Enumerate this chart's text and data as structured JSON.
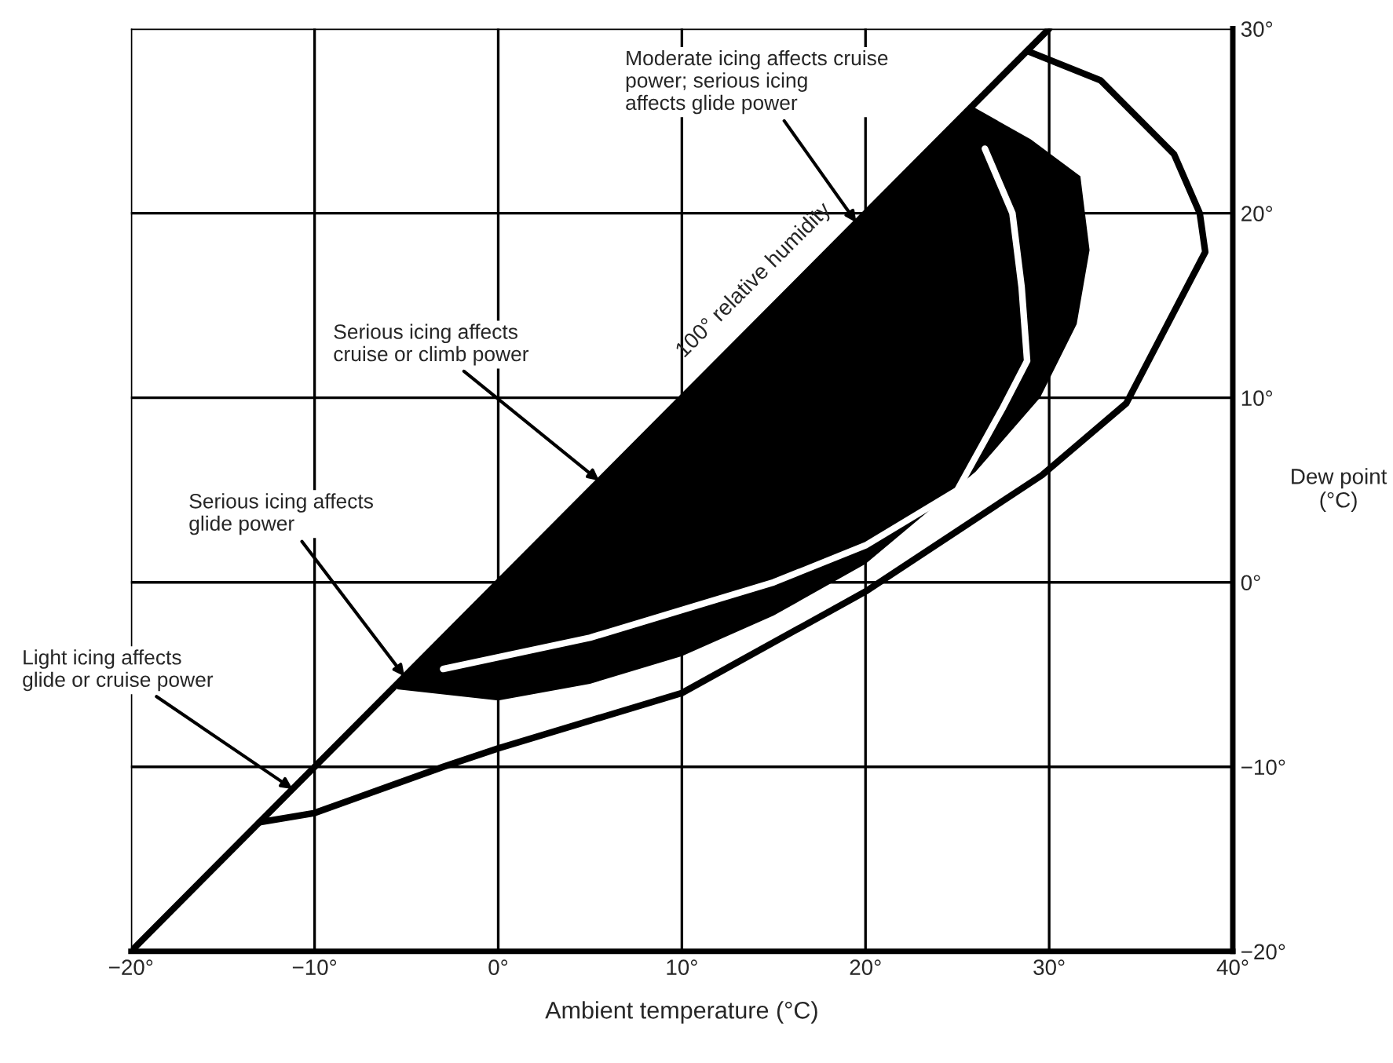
{
  "chart_data": {
    "type": "line",
    "xlabel": "Ambient temperature (°C)",
    "ylabel": "Dew point\n(°C)",
    "xlim": [
      -20,
      40
    ],
    "ylim": [
      -20,
      30
    ],
    "xticks": [
      {
        "value": -20,
        "label": "−20°"
      },
      {
        "value": -10,
        "label": "−10°"
      },
      {
        "value": 0,
        "label": "0°"
      },
      {
        "value": 10,
        "label": "10°"
      },
      {
        "value": 20,
        "label": "20°"
      },
      {
        "value": 30,
        "label": "30°"
      },
      {
        "value": 40,
        "label": "40°"
      }
    ],
    "yticks": [
      {
        "value": -20,
        "label": "−20°"
      },
      {
        "value": -10,
        "label": "−10°"
      },
      {
        "value": 0,
        "label": "0°"
      },
      {
        "value": 10,
        "label": "10°"
      },
      {
        "value": 20,
        "label": "20°"
      },
      {
        "value": 30,
        "label": "30°"
      }
    ],
    "grid": true,
    "series": [
      {
        "type": "area",
        "color": "#000000",
        "x": [
          -5.5,
          0,
          5,
          10,
          15,
          20,
          25.8,
          29,
          31.7,
          32.2,
          31.5,
          29.5,
          26,
          20,
          15,
          10,
          5,
          0,
          -5.5
        ],
        "values": [
          -5.5,
          0,
          5,
          10,
          15,
          20,
          25.8,
          24,
          22,
          18,
          14,
          10,
          6,
          1,
          -1.8,
          -4,
          -5.5,
          -6.4,
          -5.8
        ]
      },
      {
        "color": "#ffffff",
        "x": [
          -3,
          5,
          10,
          15,
          20,
          25,
          27.5,
          28.8,
          28.5,
          28,
          26.5
        ],
        "values": [
          -4.7,
          -3,
          -1.5,
          0,
          2,
          5,
          9.5,
          12,
          16,
          20,
          23.5
        ]
      },
      {
        "color": "#000000",
        "x": [
          -13,
          -10,
          -3,
          0,
          10,
          20,
          29.6,
          34.2,
          38.5,
          38.2,
          36.8,
          32.8,
          28.8
        ],
        "values": [
          -13,
          -12.5,
          -10,
          -9,
          -6,
          -0.5,
          5.8,
          9.7,
          17.9,
          20,
          23.2,
          27.2,
          28.8
        ]
      },
      {
        "color": "#000000",
        "x": [
          -20,
          30
        ],
        "values": [
          -20,
          30
        ]
      }
    ],
    "annotations": [
      {
        "text": "Moderate icing affects cruise\npower; serious icing\naffects glide power",
        "x": 19.5,
        "y": 19.5
      },
      {
        "text": "Serious icing affects\ncruise or climb power",
        "x": 5.5,
        "y": 5.5
      },
      {
        "text": "Serious icing affects\nglide power",
        "x": -5.1,
        "y": -5.1
      },
      {
        "text": "Light icing affects\nglide or cruise power",
        "x": -11.2,
        "y": -11.2
      },
      {
        "text": "100° relative humidity",
        "x": 11,
        "y": 11
      }
    ]
  }
}
